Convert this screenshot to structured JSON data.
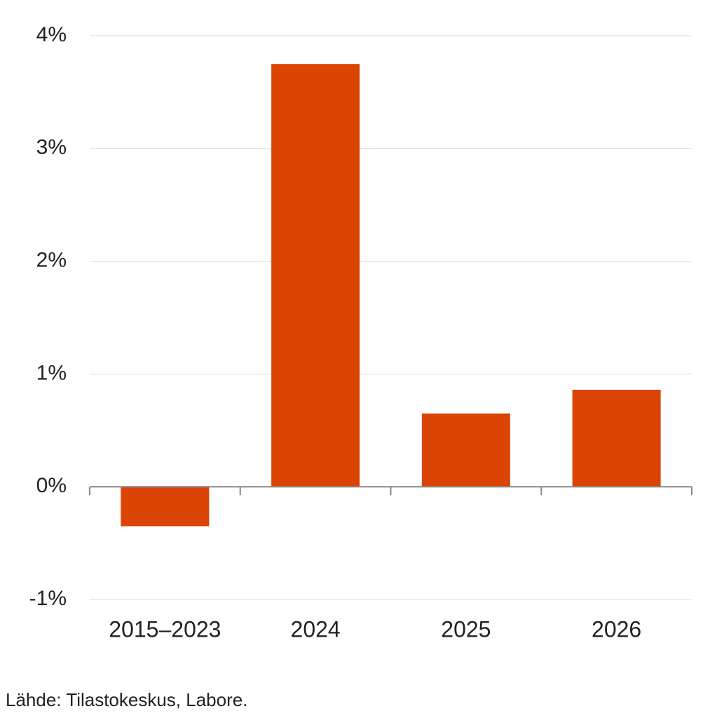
{
  "chart_data": {
    "type": "bar",
    "categories": [
      "2015–2023",
      "2024",
      "2025",
      "2026"
    ],
    "values": [
      -0.35,
      3.75,
      0.65,
      0.86
    ],
    "color": "#dc4405",
    "ylim": [
      -1,
      4
    ],
    "yticks": [
      {
        "value": -1,
        "label": "-1%"
      },
      {
        "value": 0,
        "label": "0%"
      },
      {
        "value": 1,
        "label": "1%"
      },
      {
        "value": 2,
        "label": "2%"
      },
      {
        "value": 3,
        "label": "3%"
      },
      {
        "value": 4,
        "label": "4%"
      }
    ],
    "grid": true,
    "source": "Lähde: Tilastokeskus, Labore."
  }
}
